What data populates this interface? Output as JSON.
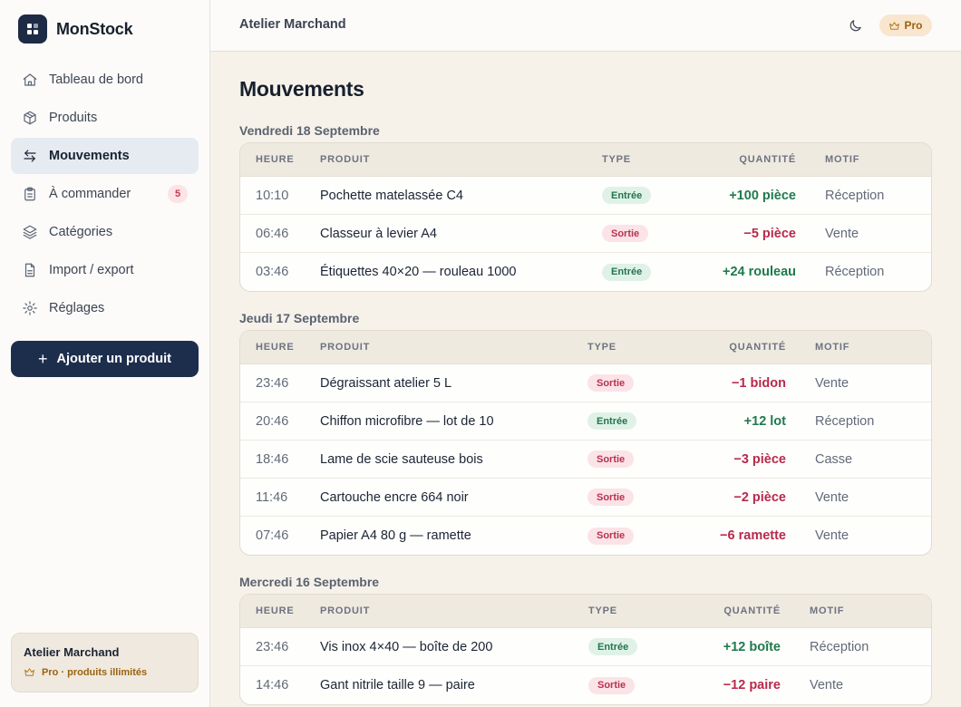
{
  "app": {
    "name": "MonStock",
    "logo_icon": "grid-box-icon"
  },
  "sidebar": {
    "items": [
      {
        "label": "Tableau de bord",
        "icon": "home-icon",
        "active": false
      },
      {
        "label": "Produits",
        "icon": "box-icon",
        "active": false
      },
      {
        "label": "Mouvements",
        "icon": "arrows-swap-icon",
        "active": true
      },
      {
        "label": "À commander",
        "icon": "clipboard-icon",
        "active": false,
        "badge": "5"
      },
      {
        "label": "Catégories",
        "icon": "layers-icon",
        "active": false
      },
      {
        "label": "Import / export",
        "icon": "file-icon",
        "active": false
      },
      {
        "label": "Réglages",
        "icon": "gear-icon",
        "active": false
      }
    ],
    "add_button_label": "Ajouter un produit",
    "account": {
      "name": "Atelier Marchand",
      "plan": "Pro · produits illimités"
    }
  },
  "header": {
    "title": "Atelier Marchand",
    "pro_label": "Pro"
  },
  "main": {
    "title": "Mouvements",
    "columns": {
      "time": "HEURE",
      "product": "PRODUIT",
      "type": "TYPE",
      "quantity": "QUANTITÉ",
      "reason": "MOTIF"
    },
    "groups": [
      {
        "date": "Vendredi 18 Septembre",
        "rows": [
          {
            "time": "10:10",
            "product": "Pochette matelassée C4",
            "type": "Entrée",
            "kind": "in",
            "quantity": "+100 pièce",
            "reason": "Réception"
          },
          {
            "time": "06:46",
            "product": "Classeur à levier A4",
            "type": "Sortie",
            "kind": "out",
            "quantity": "−5 pièce",
            "reason": "Vente"
          },
          {
            "time": "03:46",
            "product": "Étiquettes 40×20 — rouleau 1000",
            "type": "Entrée",
            "kind": "in",
            "quantity": "+24 rouleau",
            "reason": "Réception"
          }
        ]
      },
      {
        "date": "Jeudi 17 Septembre",
        "rows": [
          {
            "time": "23:46",
            "product": "Dégraissant atelier 5 L",
            "type": "Sortie",
            "kind": "out",
            "quantity": "−1 bidon",
            "reason": "Vente"
          },
          {
            "time": "20:46",
            "product": "Chiffon microfibre — lot de 10",
            "type": "Entrée",
            "kind": "in",
            "quantity": "+12 lot",
            "reason": "Réception"
          },
          {
            "time": "18:46",
            "product": "Lame de scie sauteuse bois",
            "type": "Sortie",
            "kind": "out",
            "quantity": "−3 pièce",
            "reason": "Casse"
          },
          {
            "time": "11:46",
            "product": "Cartouche encre 664 noir",
            "type": "Sortie",
            "kind": "out",
            "quantity": "−2 pièce",
            "reason": "Vente"
          },
          {
            "time": "07:46",
            "product": "Papier A4 80 g — ramette",
            "type": "Sortie",
            "kind": "out",
            "quantity": "−6 ramette",
            "reason": "Vente"
          }
        ]
      },
      {
        "date": "Mercredi 16 Septembre",
        "rows": [
          {
            "time": "23:46",
            "product": "Vis inox 4×40 — boîte de 200",
            "type": "Entrée",
            "kind": "in",
            "quantity": "+12 boîte",
            "reason": "Réception"
          },
          {
            "time": "14:46",
            "product": "Gant nitrile taille 9 — paire",
            "type": "Sortie",
            "kind": "out",
            "quantity": "−12 paire",
            "reason": "Vente"
          }
        ]
      }
    ]
  },
  "colors": {
    "primary": "#1d2e4d",
    "entry": "#1f7a4c",
    "exit": "#b8294b",
    "pro": "#9b6310"
  }
}
